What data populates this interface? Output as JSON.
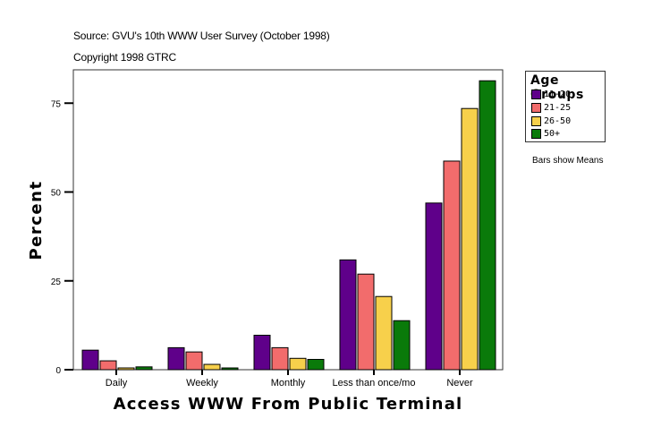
{
  "header": {
    "source": "Source: GVU's 10th WWW User Survey (October 1998)",
    "copyright": "Copyright 1998 GTRC"
  },
  "legend": {
    "title": "Age Groups",
    "items": [
      {
        "label": "11-20",
        "color": "#5f008a"
      },
      {
        "label": "21-25",
        "color": "#f26c6c"
      },
      {
        "label": "26-50",
        "color": "#f7d04b"
      },
      {
        "label": "50+",
        "color": "#0a7a0a"
      }
    ]
  },
  "note": "Bars show Means",
  "chart_data": {
    "type": "bar",
    "title": "",
    "xlabel": "Access WWW From Public Terminal",
    "ylabel": "Percent",
    "categories": [
      "Daily",
      "Weekly",
      "Monthly",
      "Less than once/mo",
      "Never"
    ],
    "series": [
      {
        "name": "11-20",
        "color": "#5f008a",
        "values": [
          5.5,
          6.2,
          9.7,
          30.9,
          46.9
        ]
      },
      {
        "name": "21-25",
        "color": "#f26c6c",
        "values": [
          2.5,
          5.0,
          6.2,
          26.9,
          58.7
        ]
      },
      {
        "name": "26-50",
        "color": "#f7d04b",
        "values": [
          0.5,
          1.5,
          3.2,
          20.6,
          73.5
        ]
      },
      {
        "name": "50+",
        "color": "#0a7a0a",
        "values": [
          0.8,
          0.5,
          2.9,
          13.8,
          81.3
        ]
      }
    ],
    "yticks": [
      0,
      25,
      50,
      75
    ],
    "ylim": [
      0,
      84.3
    ],
    "grid": false,
    "legend_position": "right"
  }
}
